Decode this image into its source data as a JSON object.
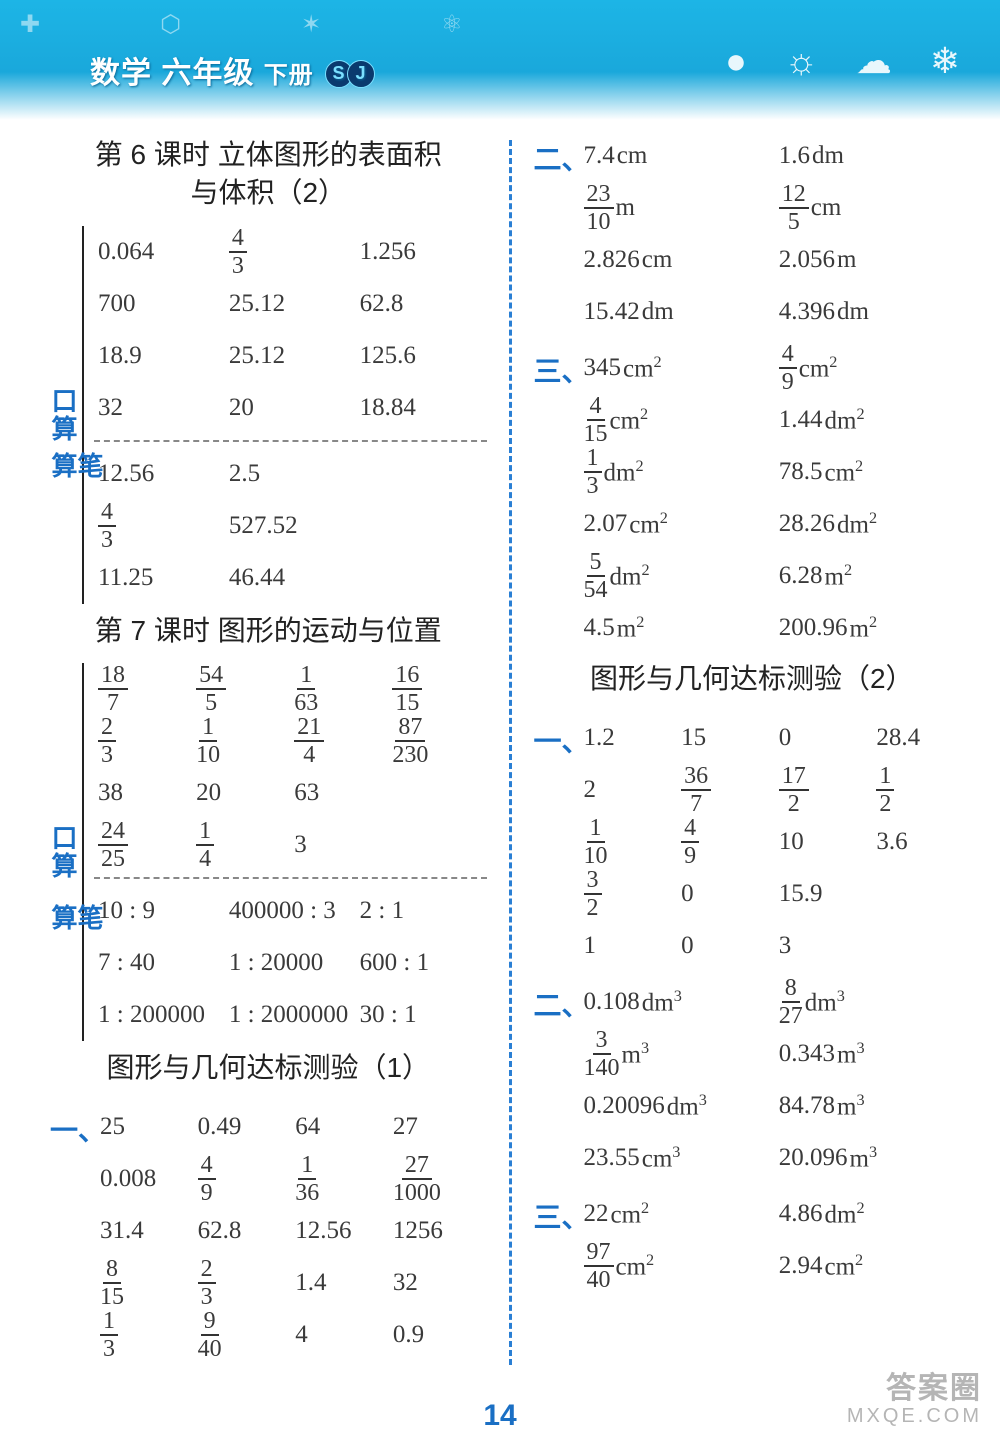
{
  "header": {
    "title_prefix": "数学 六年级",
    "title_suffix": "下册",
    "badge1": "S",
    "badge2": "J"
  },
  "page_number": "14",
  "watermark": {
    "line1": "答案圈",
    "line2": "MXQE.COM"
  },
  "left": {
    "lesson6_title_a": "第 6 课时  立体图形的表面积",
    "lesson6_title_b": "与体积（2）",
    "l6_kousuan_label": "口算",
    "l6_kousuan": [
      [
        "0.064",
        {
          "frac": [
            "4",
            "3"
          ]
        },
        "1.256"
      ],
      [
        "700",
        "25.12",
        "62.8"
      ],
      [
        "18.9",
        "25.12",
        "125.6"
      ],
      [
        "32",
        "20",
        "18.84"
      ]
    ],
    "l6_bisuan_label": "笔算",
    "l6_bisuan": [
      [
        "12.56",
        "2.5",
        ""
      ],
      [
        {
          "frac": [
            "4",
            "3"
          ]
        },
        "527.52",
        ""
      ],
      [
        "11.25",
        "46.44",
        ""
      ]
    ],
    "lesson7_title": "第 7 课时  图形的运动与位置",
    "l7_kousuan_label": "口算",
    "l7_kousuan": [
      [
        {
          "frac": [
            "18",
            "7"
          ]
        },
        {
          "frac": [
            "54",
            "5"
          ]
        },
        {
          "frac": [
            "1",
            "63"
          ]
        },
        {
          "frac": [
            "16",
            "15"
          ]
        }
      ],
      [
        {
          "frac": [
            "2",
            "3"
          ]
        },
        {
          "frac": [
            "1",
            "10"
          ]
        },
        {
          "frac": [
            "21",
            "4"
          ]
        },
        {
          "frac": [
            "87",
            "230"
          ]
        }
      ],
      [
        "38",
        "20",
        "63",
        ""
      ],
      [
        {
          "frac": [
            "24",
            "25"
          ]
        },
        {
          "frac": [
            "1",
            "4"
          ]
        },
        "3",
        ""
      ]
    ],
    "l7_bisuan_label": "笔算",
    "l7_bisuan": [
      [
        "10 : 9",
        "400000 : 3",
        "2 : 1"
      ],
      [
        "7 : 40",
        "1 : 20000",
        "600 : 1"
      ],
      [
        "1 : 200000",
        "1 : 2000000",
        "30 : 1"
      ]
    ],
    "test1_title": "图形与几何达标测验（1）",
    "t1_marker": "一、",
    "t1_rows": [
      [
        "25",
        "0.49",
        "64",
        "27"
      ],
      [
        "0.008",
        {
          "frac": [
            "4",
            "9"
          ]
        },
        {
          "frac": [
            "1",
            "36"
          ]
        },
        {
          "frac": [
            "27",
            "1000"
          ]
        }
      ],
      [
        "31.4",
        "62.8",
        "12.56",
        "1256"
      ],
      [
        {
          "frac": [
            "8",
            "15"
          ]
        },
        {
          "frac": [
            "2",
            "3"
          ]
        },
        "1.4",
        "32"
      ],
      [
        {
          "frac": [
            "1",
            "3"
          ]
        },
        {
          "frac": [
            "9",
            "40"
          ]
        },
        "4",
        "0.9"
      ]
    ]
  },
  "right": {
    "t1_sec2_marker": "二、",
    "t1_sec2": [
      [
        [
          "7.4",
          "cm"
        ],
        [
          "1.6",
          "dm"
        ]
      ],
      [
        [
          {
            "frac": [
              "23",
              "10"
            ]
          },
          "m"
        ],
        [
          {
            "frac": [
              "12",
              "5"
            ]
          },
          "cm"
        ]
      ],
      [
        [
          "2.826",
          "cm"
        ],
        [
          "2.056",
          "m"
        ]
      ],
      [
        [
          "15.42",
          "dm"
        ],
        [
          "4.396",
          "dm"
        ]
      ]
    ],
    "t1_sec3_marker": "三、",
    "t1_sec3": [
      [
        [
          "345",
          "cm²"
        ],
        [
          {
            "frac": [
              "4",
              "9"
            ]
          },
          "cm²"
        ]
      ],
      [
        [
          {
            "frac": [
              "4",
              "15"
            ]
          },
          "cm²"
        ],
        [
          "1.44",
          "dm²"
        ]
      ],
      [
        [
          {
            "frac": [
              "1",
              "3"
            ]
          },
          "dm²"
        ],
        [
          "78.5",
          "cm²"
        ]
      ],
      [
        [
          "2.07",
          "cm²"
        ],
        [
          "28.26",
          "dm²"
        ]
      ],
      [
        [
          {
            "frac": [
              "5",
              "54"
            ]
          },
          "dm²"
        ],
        [
          "6.28",
          "m²"
        ]
      ],
      [
        [
          "4.5",
          "m²"
        ],
        [
          "200.96",
          "m²"
        ]
      ]
    ],
    "test2_title": "图形与几何达标测验（2）",
    "t2_sec1_marker": "一、",
    "t2_sec1": [
      [
        "1.2",
        "15",
        "0",
        "28.4"
      ],
      [
        "2",
        {
          "frac": [
            "36",
            "7"
          ]
        },
        {
          "frac": [
            "17",
            "2"
          ]
        },
        {
          "frac": [
            "1",
            "2"
          ]
        }
      ],
      [
        {
          "frac": [
            "1",
            "10"
          ]
        },
        {
          "frac": [
            "4",
            "9"
          ]
        },
        "10",
        "3.6"
      ],
      [
        {
          "frac": [
            "3",
            "2"
          ]
        },
        "0",
        "15.9",
        ""
      ],
      [
        "1",
        "0",
        "3",
        ""
      ]
    ],
    "t2_sec2_marker": "二、",
    "t2_sec2": [
      [
        [
          "0.108",
          "dm³"
        ],
        [
          {
            "frac": [
              "8",
              "27"
            ]
          },
          "dm³"
        ]
      ],
      [
        [
          {
            "frac": [
              "3",
              "140"
            ]
          },
          "m³"
        ],
        [
          "0.343",
          "m³"
        ]
      ],
      [
        [
          "0.20096",
          "dm³"
        ],
        [
          "84.78",
          "m³"
        ]
      ],
      [
        [
          "23.55",
          "cm³"
        ],
        [
          "20.096",
          "m³"
        ]
      ]
    ],
    "t2_sec3_marker": "三、",
    "t2_sec3": [
      [
        [
          "22",
          "cm²"
        ],
        [
          "4.86",
          "dm²"
        ]
      ],
      [
        [
          {
            "frac": [
              "97",
              "40"
            ]
          },
          "cm²"
        ],
        [
          "2.94",
          "cm²"
        ]
      ]
    ]
  }
}
